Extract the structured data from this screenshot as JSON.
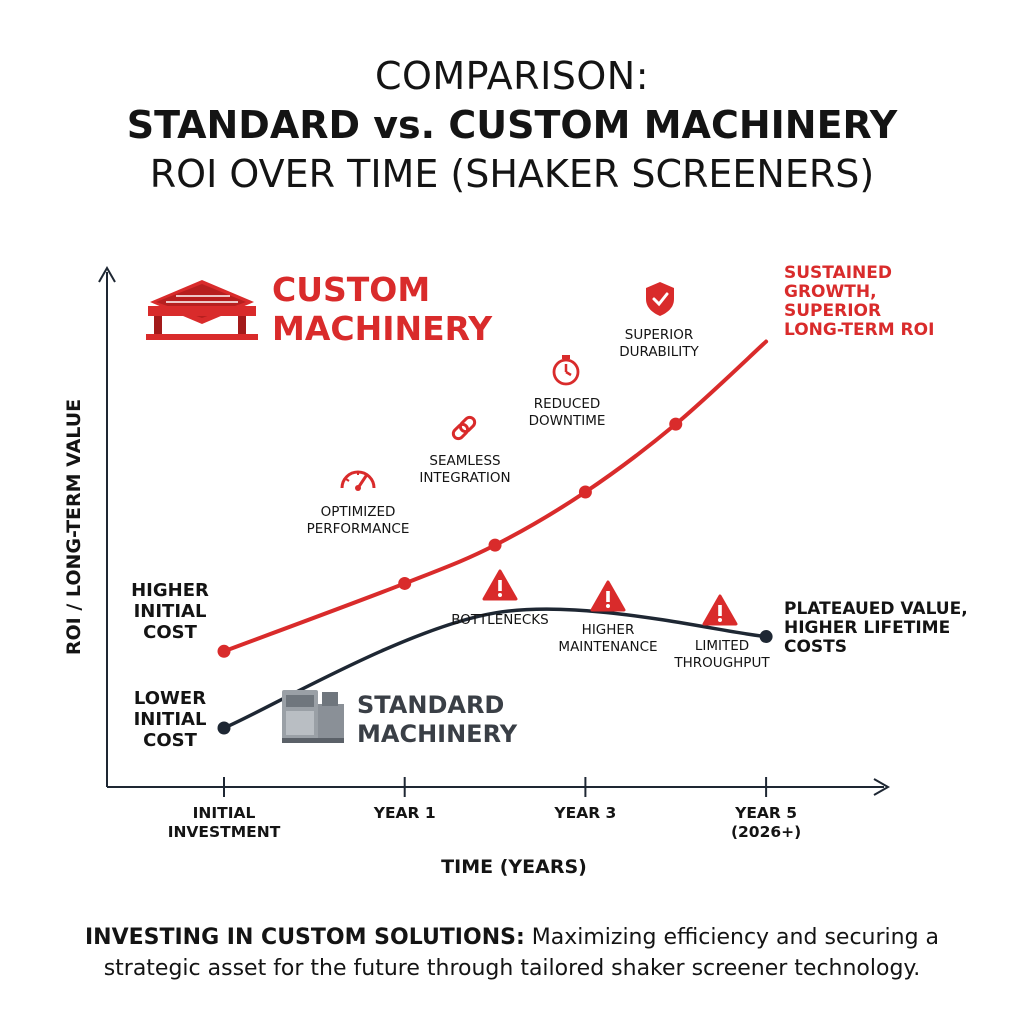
{
  "title": {
    "line1": "COMPARISON:",
    "line2": "STANDARD vs. CUSTOM MACHINERY",
    "line3": "ROI OVER TIME (SHAKER SCREENERS)"
  },
  "colors": {
    "custom": "#d92b2b",
    "standard": "#1e2733",
    "text": "#141414"
  },
  "chart_data": {
    "type": "line",
    "xlabel": "TIME (YEARS)",
    "ylabel": "ROI / LONG-TERM VALUE",
    "x_ticks": [
      {
        "lines": [
          "INITIAL",
          "INVESTMENT"
        ]
      },
      {
        "lines": [
          "YEAR 1"
        ]
      },
      {
        "lines": [
          "YEAR 3"
        ]
      },
      {
        "lines": [
          "YEAR 5",
          "(2026+)"
        ]
      }
    ],
    "series": [
      {
        "name": "CUSTOM MACHINERY",
        "color": "#d92b2b",
        "x": [
          0,
          1,
          1.5,
          2,
          2.5,
          3
        ],
        "y": [
          4.6,
          6.9,
          8.2,
          10.0,
          12.3,
          15.1
        ],
        "start_label": [
          "HIGHER",
          "INITIAL",
          "COST"
        ],
        "end_label": [
          "SUSTAINED",
          "GROWTH,",
          "SUPERIOR",
          "LONG-TERM ROI"
        ],
        "annotations": [
          {
            "x": 1,
            "text": [
              "OPTIMIZED",
              "PERFORMANCE"
            ],
            "icon": "gauge-icon"
          },
          {
            "x": 1.5,
            "text": [
              "SEAMLESS",
              "INTEGRATION"
            ],
            "icon": "link-icon"
          },
          {
            "x": 2,
            "text": [
              "REDUCED",
              "DOWNTIME"
            ],
            "icon": "stopwatch-icon"
          },
          {
            "x": 2.5,
            "text": [
              "SUPERIOR",
              "DURABILITY"
            ],
            "icon": "shield-check-icon"
          }
        ]
      },
      {
        "name": "STANDARD MACHINERY",
        "color": "#1e2733",
        "x": [
          0,
          1.5,
          3
        ],
        "y": [
          2.0,
          5.9,
          5.1
        ],
        "start_label": [
          "LOWER",
          "INITIAL",
          "COST"
        ],
        "end_label": [
          "PLATEAUED VALUE,",
          "HIGHER LIFETIME",
          "COSTS"
        ],
        "annotations": [
          {
            "x": 1.5,
            "text": [
              "BOTTLENECKS"
            ],
            "icon": "warning-icon"
          },
          {
            "x": 2.1,
            "text": [
              "HIGHER",
              "MAINTENANCE"
            ],
            "icon": "warning-icon"
          },
          {
            "x": 2.75,
            "text": [
              "LIMITED",
              "THROUGHPUT"
            ],
            "icon": "warning-icon"
          }
        ]
      }
    ],
    "xlim": [
      0,
      3.5
    ],
    "ylim": [
      0,
      18
    ],
    "grid": false,
    "legend": "inline-labels"
  },
  "footer": {
    "bold": "INVESTING IN CUSTOM SOLUTIONS:",
    "text": " Maximizing efficiency and securing a strategic asset for the future through tailored shaker screener technology."
  }
}
